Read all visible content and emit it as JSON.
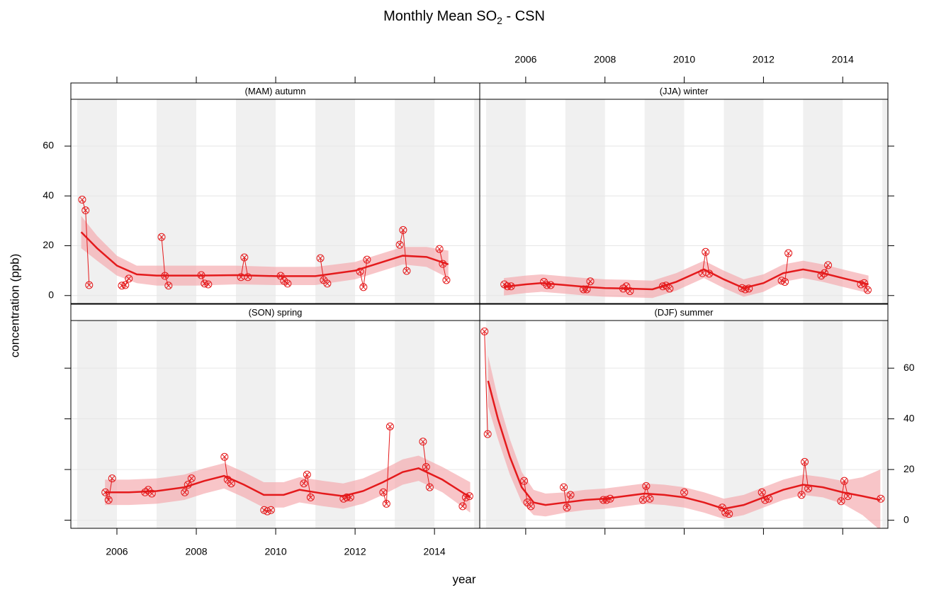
{
  "figure": {
    "title": {
      "main": "Monthly Mean SO",
      "subscript": "2",
      "tail": " - CSN"
    },
    "xlabel": "year",
    "ylabel": "concentration (ppb)"
  },
  "chart_data": [
    {
      "type": "line",
      "title": "(MAM) autumn",
      "color": "#e41a1c",
      "band_color": "#f4a6aa",
      "grid": true,
      "xlim": [
        2004.84,
        2015.14
      ],
      "ylim": [
        -3.2,
        78.8
      ],
      "xticks": [
        2006,
        2008,
        2010,
        2012,
        2014
      ],
      "yticks": [
        0,
        20,
        40,
        60
      ],
      "x": [
        2005.125,
        2005.21,
        2005.3,
        2006.125,
        2006.21,
        2006.3,
        2007.125,
        2007.21,
        2007.3,
        2008.125,
        2008.21,
        2008.3,
        2009.125,
        2009.21,
        2009.3,
        2010.125,
        2010.21,
        2010.3,
        2011.125,
        2011.21,
        2011.3,
        2012.125,
        2012.21,
        2012.3,
        2013.125,
        2013.21,
        2013.3,
        2014.125,
        2014.21,
        2014.3
      ],
      "values": [
        38.5,
        34.2,
        4.2,
        4,
        4.2,
        6.8,
        23.5,
        7.9,
        4,
        8.2,
        4.8,
        4.5,
        7.4,
        15.3,
        7.4,
        7.9,
        5.9,
        4.8,
        15,
        6.2,
        4.8,
        9.6,
        3.4,
        14.4,
        20.4,
        26.3,
        9.9,
        18.7,
        12.7,
        6.2
      ],
      "smooth": {
        "x": [
          2005.1,
          2005.5,
          2006,
          2006.5,
          2007,
          2008,
          2009,
          2010,
          2011,
          2012,
          2012.6,
          2013.2,
          2013.8,
          2014.35
        ],
        "values": [
          25.5,
          19,
          12,
          8.5,
          8,
          8,
          8.2,
          7.8,
          7.8,
          10,
          13,
          16,
          15.5,
          12.5
        ],
        "lower": [
          19,
          14,
          8,
          5,
          4,
          4,
          4.5,
          4.2,
          4.2,
          6.5,
          9.5,
          12.5,
          11.5,
          7
        ],
        "upper": [
          32,
          24,
          16,
          12,
          12,
          12,
          12,
          11.5,
          11.5,
          13.5,
          16.5,
          19.5,
          19.5,
          18
        ]
      }
    },
    {
      "type": "line",
      "title": "(JJA) winter",
      "color": "#e41a1c",
      "band_color": "#f4a6aa",
      "grid": true,
      "xlim": [
        2004.84,
        2015.14
      ],
      "ylim": [
        -3.2,
        78.8
      ],
      "xticks": [
        2006,
        2008,
        2010,
        2012,
        2014
      ],
      "yticks": [
        0,
        20,
        40,
        60
      ],
      "x": [
        2005.46,
        2005.54,
        2005.63,
        2006.46,
        2006.54,
        2006.63,
        2007.46,
        2007.54,
        2007.63,
        2008.46,
        2008.54,
        2008.63,
        2009.46,
        2009.54,
        2009.63,
        2010.46,
        2010.54,
        2010.63,
        2011.46,
        2011.54,
        2011.63,
        2012.46,
        2012.54,
        2012.63,
        2013.46,
        2013.54,
        2013.63,
        2014.46,
        2014.54,
        2014.63
      ],
      "values": [
        4.5,
        3.7,
        3.7,
        5.5,
        4.2,
        4.2,
        2.5,
        2.5,
        5.7,
        2.8,
        3.7,
        1.8,
        3.7,
        4,
        2.8,
        9,
        17.5,
        8.8,
        3,
        2.5,
        2.8,
        6,
        5.5,
        17,
        8,
        9,
        12.2,
        4.5,
        5,
        2.2
      ],
      "smooth": {
        "x": [
          2005.45,
          2006,
          2006.4,
          2007,
          2007.5,
          2008,
          2008.6,
          2009.2,
          2009.8,
          2010.5,
          2011,
          2011.5,
          2012,
          2012.5,
          2013,
          2013.5,
          2014,
          2014.65
        ],
        "values": [
          3.5,
          4.5,
          5,
          4.2,
          3.5,
          3,
          2.8,
          2.5,
          5.5,
          10.5,
          6.5,
          3,
          5,
          9,
          10.5,
          9,
          7,
          4.5
        ],
        "lower": [
          0,
          1,
          1.5,
          0.7,
          0,
          -0.5,
          -0.7,
          -1,
          2,
          7,
          3,
          -0.5,
          1.5,
          5.5,
          7,
          5.5,
          3.5,
          1
        ],
        "upper": [
          7,
          8,
          8.5,
          7.7,
          7,
          6.5,
          6.3,
          6,
          9,
          14,
          10,
          6.5,
          8.5,
          12.5,
          14,
          12.5,
          10.5,
          8
        ]
      }
    },
    {
      "type": "line",
      "title": "(SON)  spring",
      "color": "#e41a1c",
      "band_color": "#f4a6aa",
      "grid": true,
      "xlim": [
        2004.84,
        2015.14
      ],
      "ylim": [
        -3.2,
        78.8
      ],
      "xticks": [
        2006,
        2008,
        2010,
        2012,
        2014
      ],
      "yticks": [
        0,
        20,
        40,
        60
      ],
      "x": [
        2005.71,
        2005.79,
        2005.88,
        2006.71,
        2006.79,
        2006.88,
        2007.71,
        2007.79,
        2007.88,
        2008.71,
        2008.79,
        2008.88,
        2009.71,
        2009.79,
        2009.88,
        2010.71,
        2010.79,
        2010.88,
        2011.71,
        2011.79,
        2011.88,
        2012.71,
        2012.79,
        2012.88,
        2013.71,
        2013.79,
        2013.88,
        2014.71,
        2014.79,
        2014.88
      ],
      "values": [
        11,
        8,
        16.5,
        11,
        12,
        10.5,
        11,
        14,
        16.5,
        25,
        16,
        14.5,
        4,
        3.5,
        4,
        14.5,
        18,
        9,
        8.5,
        9,
        9,
        11,
        6.5,
        37,
        31,
        21,
        13,
        5.5,
        9,
        9.5
      ],
      "smooth": {
        "x": [
          2005.7,
          2006.3,
          2007,
          2007.7,
          2008.2,
          2008.7,
          2009.2,
          2009.7,
          2010.2,
          2010.6,
          2011.2,
          2011.7,
          2012.2,
          2012.7,
          2013.2,
          2013.6,
          2014.2,
          2014.9
        ],
        "values": [
          11,
          11,
          11.5,
          13,
          15.5,
          17.5,
          14,
          10,
          10,
          12,
          10.5,
          9.5,
          11.5,
          15,
          19,
          20.5,
          16,
          9
        ],
        "lower": [
          6,
          6,
          6.5,
          8,
          10.5,
          12.5,
          9,
          5,
          5,
          7,
          5.5,
          4.5,
          6.5,
          10,
          14,
          15.5,
          11,
          3
        ],
        "upper": [
          16,
          16,
          16.5,
          18,
          20.5,
          22.5,
          19,
          15,
          15,
          17,
          15.5,
          14.5,
          16.5,
          20,
          24,
          25.5,
          21,
          15
        ]
      }
    },
    {
      "type": "line",
      "title": "(DJF)  summer",
      "color": "#e41a1c",
      "band_color": "#f4a6aa",
      "grid": true,
      "xlim": [
        2004.84,
        2015.14
      ],
      "ylim": [
        -3.2,
        78.8
      ],
      "xticks": [
        2006,
        2008,
        2010,
        2012,
        2014
      ],
      "yticks": [
        0,
        20,
        40,
        60
      ],
      "x": [
        2004.96,
        2005.04,
        2005.96,
        2006.04,
        2006.13,
        2006.96,
        2007.04,
        2007.13,
        2007.96,
        2008.04,
        2008.13,
        2008.96,
        2009.04,
        2009.13,
        2010.0,
        2010.96,
        2011.04,
        2011.13,
        2011.96,
        2012.04,
        2012.13,
        2012.96,
        2013.04,
        2013.13,
        2013.96,
        2014.04,
        2014.13,
        2014.96
      ],
      "values": [
        74.5,
        34,
        15.5,
        7,
        5.5,
        13,
        5,
        10,
        8,
        8,
        8.5,
        8,
        13.5,
        8.5,
        11,
        5,
        3,
        2.5,
        11,
        8,
        8.5,
        10,
        23,
        12.5,
        7.5,
        15.5,
        9.5,
        8.5
      ],
      "smooth": {
        "x": [
          2005.05,
          2005.3,
          2005.6,
          2005.9,
          2006.2,
          2006.5,
          2007,
          2007.5,
          2008,
          2008.5,
          2009,
          2009.5,
          2010,
          2010.5,
          2011,
          2011.5,
          2012,
          2012.5,
          2013,
          2013.5,
          2014,
          2014.5,
          2014.95
        ],
        "values": [
          55,
          40,
          25,
          13,
          7,
          6,
          7,
          8,
          8.5,
          9.5,
          10.5,
          10,
          9,
          7,
          4.5,
          6,
          9,
          12,
          14,
          13,
          11,
          9.5,
          8
        ],
        "lower": [
          45,
          32,
          18,
          7,
          2,
          1.5,
          3,
          4,
          4.5,
          5.5,
          6.5,
          6,
          5,
          3,
          0.5,
          2,
          5,
          8,
          10,
          9,
          6.5,
          2,
          -4
        ],
        "upper": [
          65,
          48,
          32,
          19,
          12,
          10.5,
          11,
          12,
          12.5,
          13.5,
          14.5,
          14,
          13,
          11,
          8.5,
          10,
          13,
          16,
          18,
          17,
          15.5,
          17,
          20
        ]
      }
    }
  ]
}
